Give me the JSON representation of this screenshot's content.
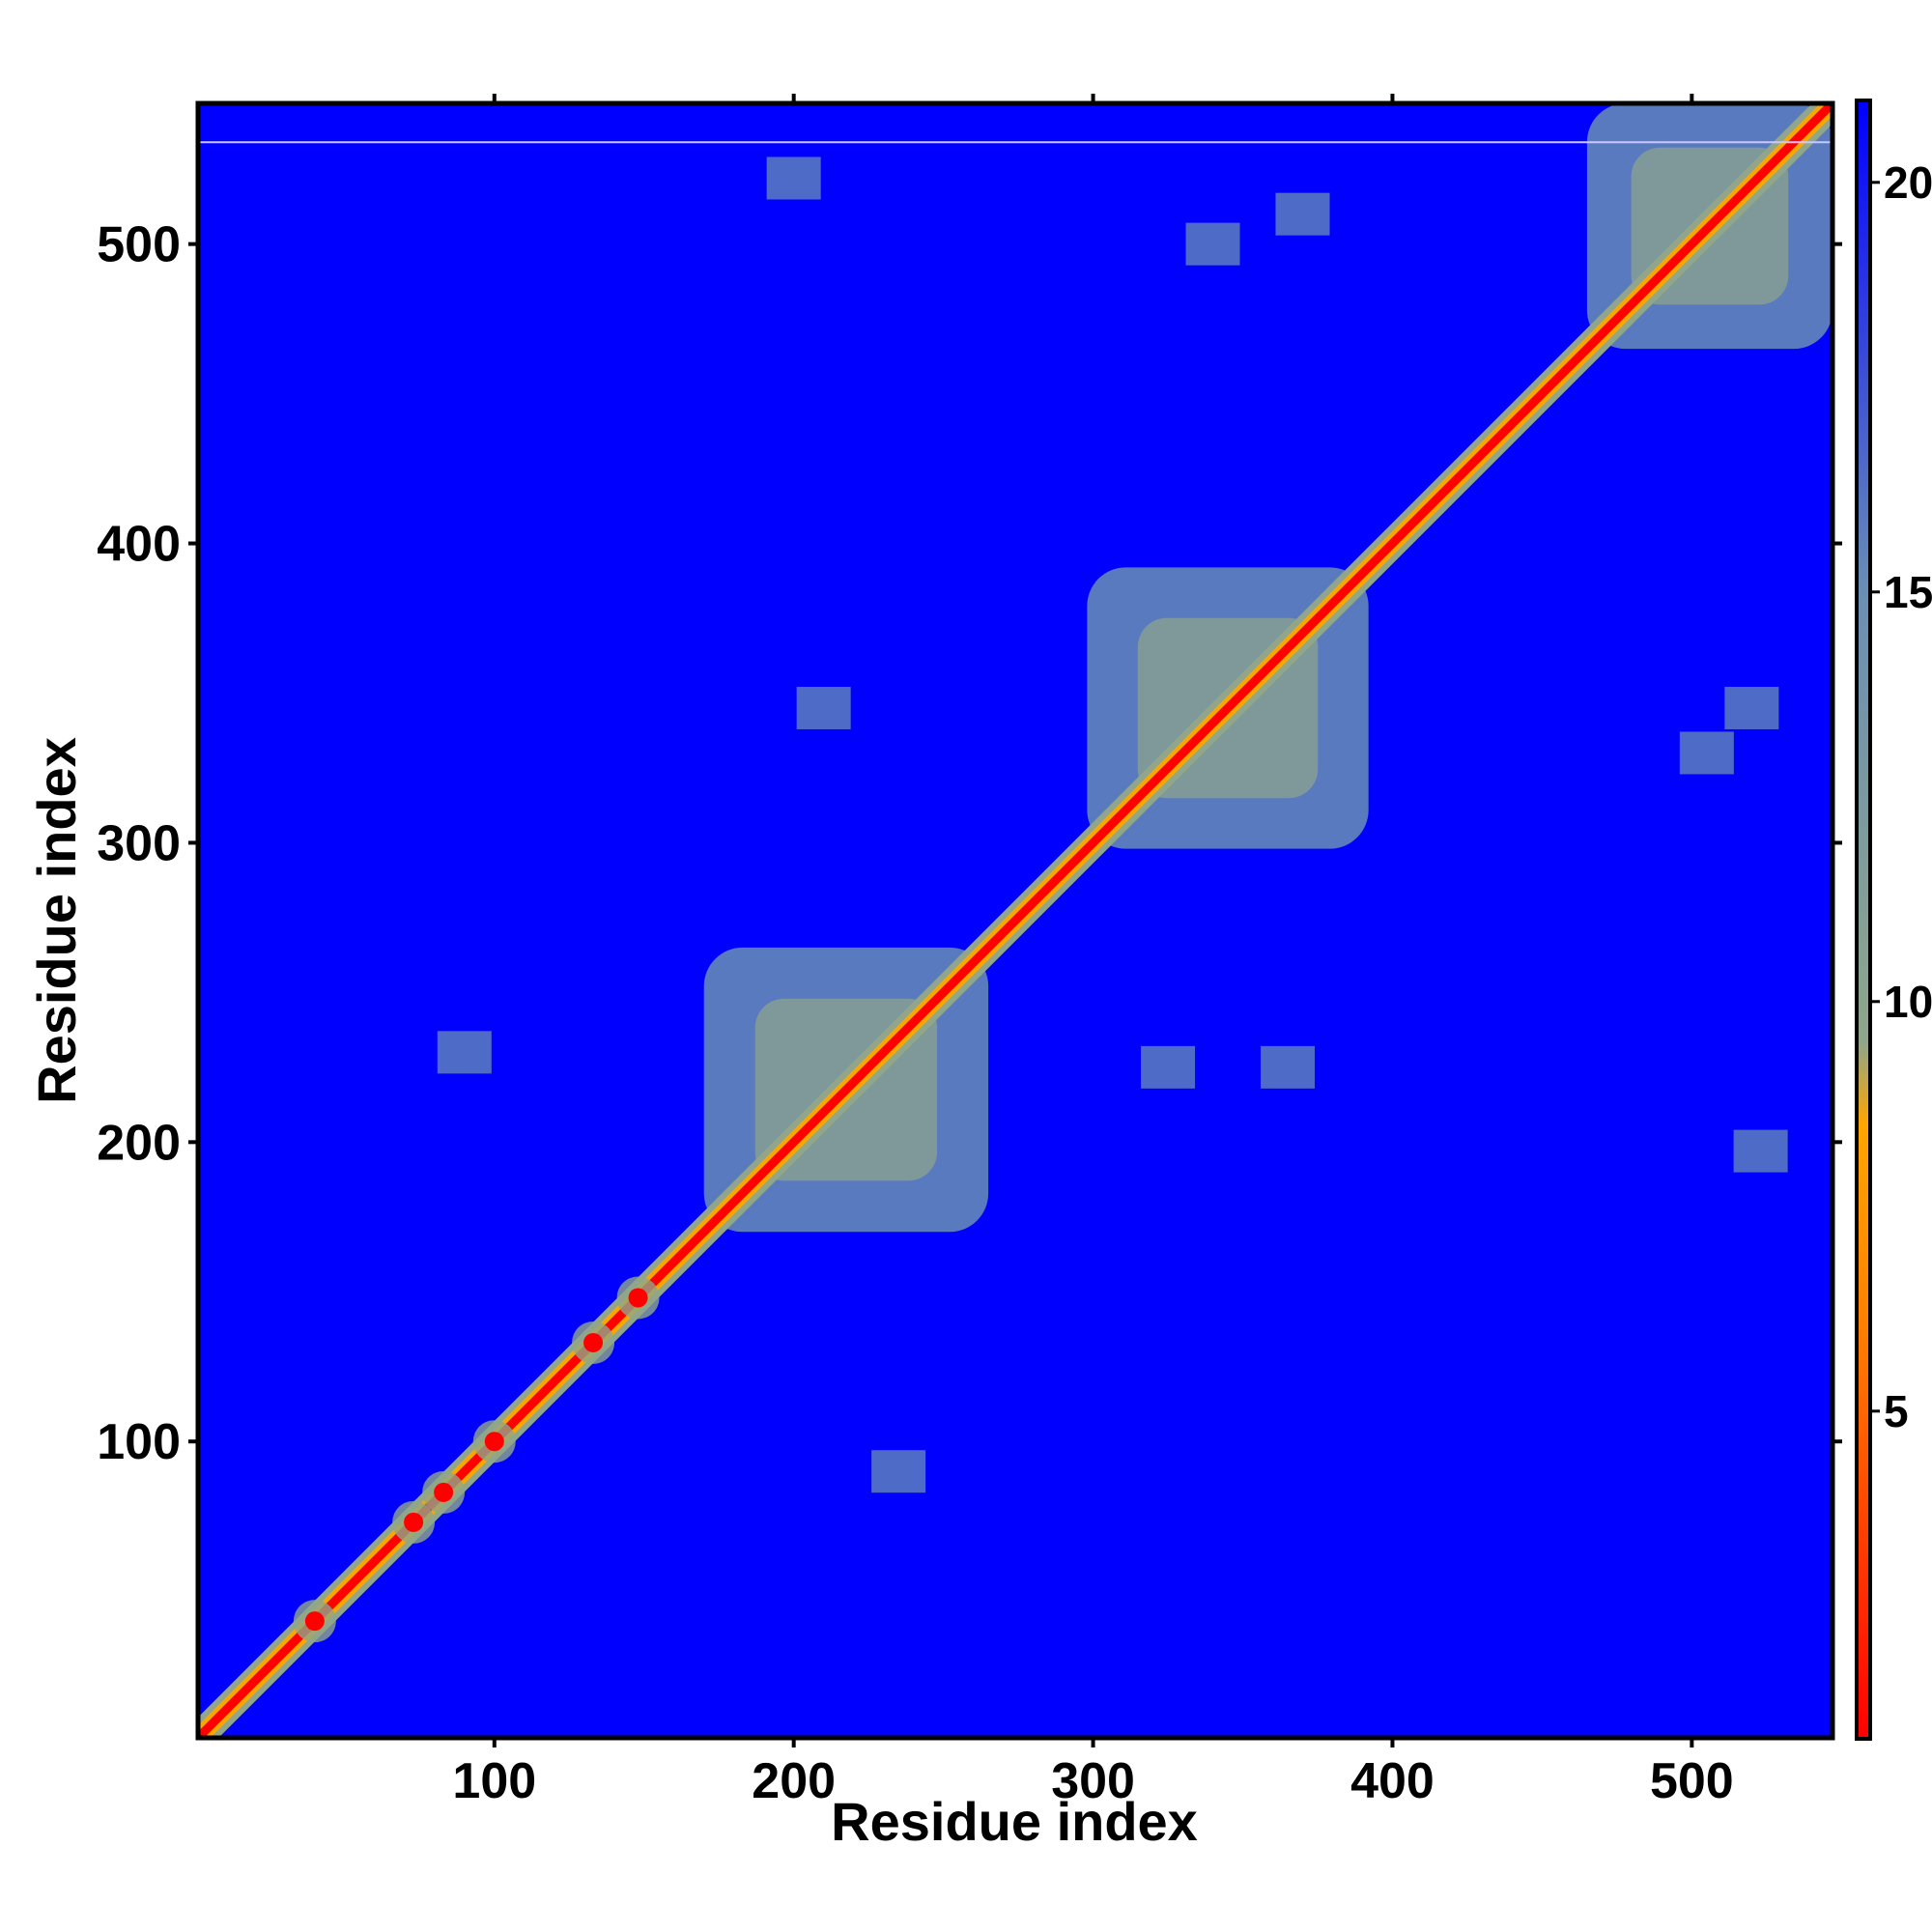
{
  "chart_data": {
    "type": "heatmap",
    "title": "",
    "xlabel": "Residue index",
    "ylabel": "Residue index",
    "xlim": [
      1,
      547
    ],
    "ylim": [
      1,
      547
    ],
    "x_ticks": [
      "100",
      "200",
      "300",
      "400",
      "500"
    ],
    "y_ticks": [
      "100",
      "200",
      "300",
      "400",
      "500"
    ],
    "colorbar": {
      "range": [
        1,
        21
      ],
      "ticks": [
        "5",
        "10",
        "15",
        "20"
      ],
      "colors": [
        "#ff0000",
        "#ff7f00",
        "#ffa500",
        "#8fa68a",
        "#6a8fb5",
        "#0000ff"
      ],
      "stops": [
        1,
        6,
        8.5,
        9.5,
        15,
        21
      ]
    },
    "background_color": "#0000ff",
    "diagonal_color": "#ff0000",
    "domains": [
      {
        "start": 170,
        "end": 265
      },
      {
        "start": 298,
        "end": 392
      },
      {
        "start": 465,
        "end": 547
      }
    ],
    "diagonal_blobs": [
      40,
      73,
      83,
      100,
      133,
      148
    ],
    "off_diagonal_contacts": [
      {
        "x": 210,
        "y": 345
      },
      {
        "x": 325,
        "y": 225
      },
      {
        "x": 365,
        "y": 225
      },
      {
        "x": 340,
        "y": 500
      },
      {
        "x": 370,
        "y": 510
      },
      {
        "x": 200,
        "y": 522
      },
      {
        "x": 520,
        "y": 345
      },
      {
        "x": 505,
        "y": 330
      },
      {
        "x": 523,
        "y": 197
      },
      {
        "x": 90,
        "y": 230
      },
      {
        "x": 235,
        "y": 90
      }
    ]
  }
}
